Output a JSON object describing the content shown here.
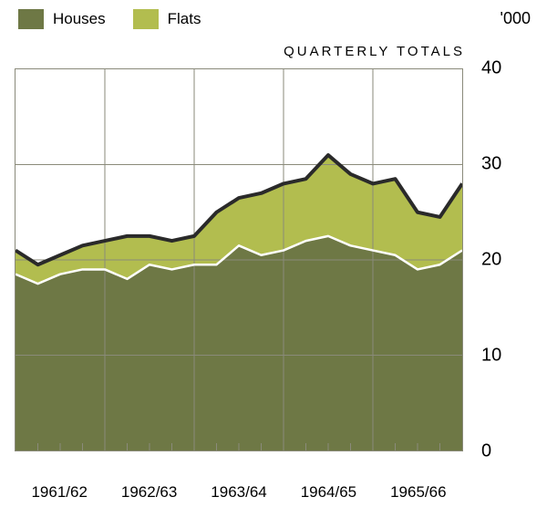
{
  "chart": {
    "type": "area",
    "subtitle": "QUARTERLY TOTALS",
    "y_unit": "'000",
    "background_color": "#ffffff",
    "plot_bg": "#ffffff",
    "grid_color": "#8a8a7a",
    "grid_width": 1,
    "x_categories": [
      "1961/62",
      "1962/63",
      "1963/64",
      "1964/65",
      "1965/66"
    ],
    "ylim": [
      0,
      40
    ],
    "ytick_step": 10,
    "yticks": [
      0,
      10,
      20,
      30,
      40
    ],
    "quarters_per_category": 4,
    "n_points": 21,
    "series": [
      {
        "name": "Houses",
        "label": "Houses",
        "color": "#6e7845",
        "stroke": "#ffffff",
        "stroke_width": 2.5,
        "values": [
          18.5,
          17.5,
          18.5,
          19.0,
          19.0,
          18.0,
          19.5,
          19.0,
          19.5,
          19.5,
          21.5,
          20.5,
          21.0,
          22.0,
          22.5,
          21.5,
          21.0,
          20.5,
          19.0,
          19.5,
          21.0
        ]
      },
      {
        "name": "Flats",
        "label": "Flats",
        "color": "#b2bd4f",
        "stroke": "#2a2a2a",
        "stroke_width": 4,
        "values": [
          2.5,
          2.0,
          2.0,
          2.5,
          3.0,
          4.5,
          3.0,
          3.0,
          3.0,
          5.5,
          5.0,
          6.5,
          7.0,
          6.5,
          8.5,
          7.5,
          7.0,
          8.0,
          6.0,
          5.0,
          7.0
        ]
      }
    ],
    "legend": {
      "items": [
        {
          "label": "Houses",
          "color": "#6e7845"
        },
        {
          "label": "Flats",
          "color": "#b2bd4f"
        }
      ]
    },
    "label_fontsize": 17,
    "tick_fontsize": 20
  }
}
